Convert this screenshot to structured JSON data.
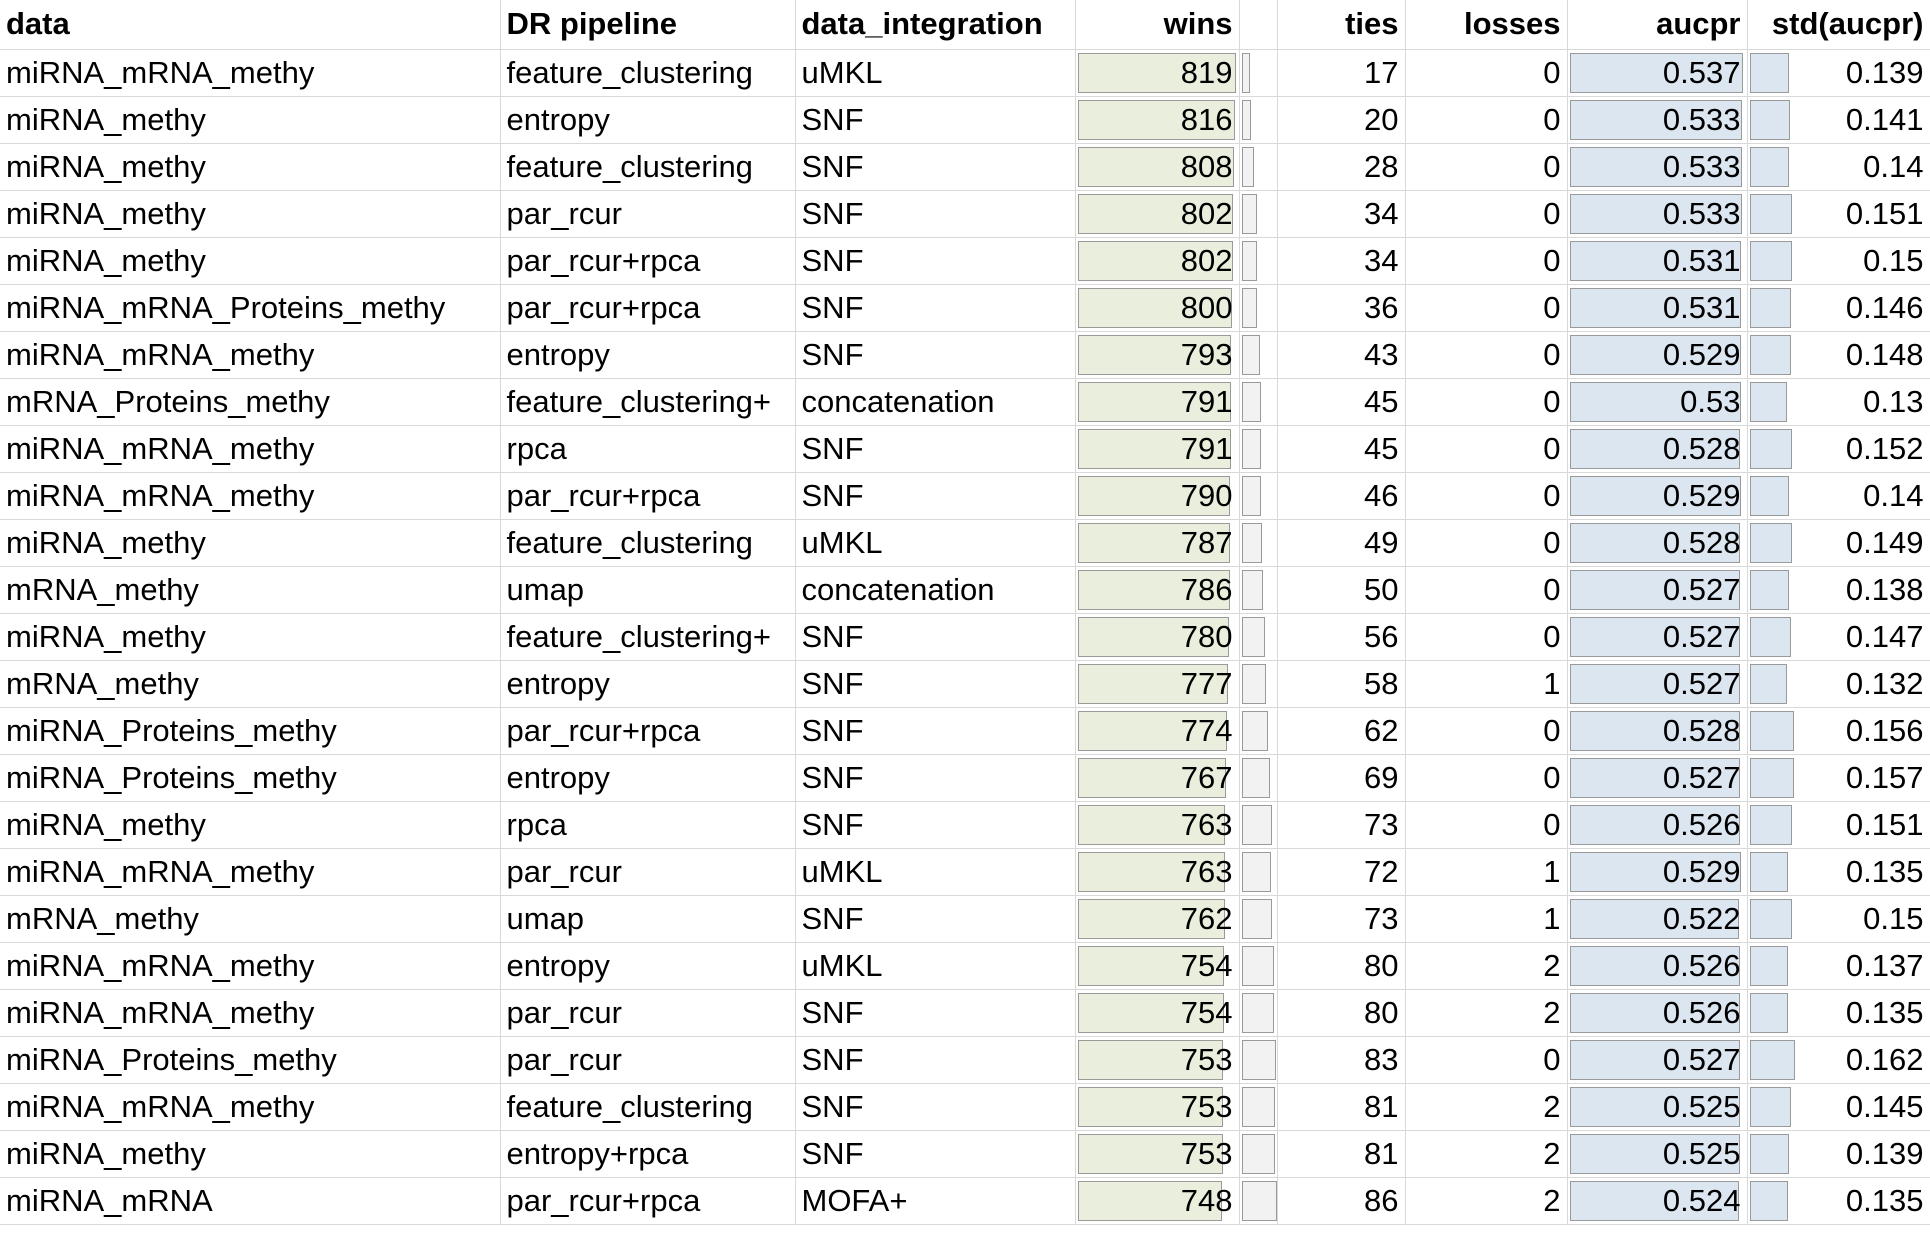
{
  "headers": {
    "data": "data",
    "dr_pipeline": "DR pipeline",
    "data_integration": "data_integration",
    "wins": "wins",
    "ties": "ties",
    "losses": "losses",
    "aucpr": "aucpr",
    "std_aucpr": "std(aucpr)"
  },
  "colors": {
    "wins_bar": "#e9efdc",
    "aucpr_bar": "#dce6f1",
    "std_bar": "#f2f2f2",
    "gridline": "#d9d9d9"
  },
  "rows": [
    {
      "data": "miRNA_mRNA_methy",
      "dr": "feature_clustering",
      "integration": "uMKL",
      "wins": "819",
      "ties": "17",
      "losses": "0",
      "aucpr": "0.537",
      "std": "0.139"
    },
    {
      "data": "miRNA_methy",
      "dr": "entropy",
      "integration": "SNF",
      "wins": "816",
      "ties": "20",
      "losses": "0",
      "aucpr": "0.533",
      "std": "0.141"
    },
    {
      "data": "miRNA_methy",
      "dr": "feature_clustering",
      "integration": "SNF",
      "wins": "808",
      "ties": "28",
      "losses": "0",
      "aucpr": "0.533",
      "std": "0.14"
    },
    {
      "data": "miRNA_methy",
      "dr": "par_rcur",
      "integration": "SNF",
      "wins": "802",
      "ties": "34",
      "losses": "0",
      "aucpr": "0.533",
      "std": "0.151"
    },
    {
      "data": "miRNA_methy",
      "dr": "par_rcur+rpca",
      "integration": "SNF",
      "wins": "802",
      "ties": "34",
      "losses": "0",
      "aucpr": "0.531",
      "std": "0.15"
    },
    {
      "data": "miRNA_mRNA_Proteins_methy",
      "dr": "par_rcur+rpca",
      "integration": "SNF",
      "wins": "800",
      "ties": "36",
      "losses": "0",
      "aucpr": "0.531",
      "std": "0.146"
    },
    {
      "data": "miRNA_mRNA_methy",
      "dr": "entropy",
      "integration": "SNF",
      "wins": "793",
      "ties": "43",
      "losses": "0",
      "aucpr": "0.529",
      "std": "0.148"
    },
    {
      "data": "mRNA_Proteins_methy",
      "dr": "feature_clustering+",
      "integration": "concatenation",
      "wins": "791",
      "ties": "45",
      "losses": "0",
      "aucpr": "0.53",
      "std": "0.13"
    },
    {
      "data": "miRNA_mRNA_methy",
      "dr": "rpca",
      "integration": "SNF",
      "wins": "791",
      "ties": "45",
      "losses": "0",
      "aucpr": "0.528",
      "std": "0.152"
    },
    {
      "data": "miRNA_mRNA_methy",
      "dr": "par_rcur+rpca",
      "integration": "SNF",
      "wins": "790",
      "ties": "46",
      "losses": "0",
      "aucpr": "0.529",
      "std": "0.14"
    },
    {
      "data": "miRNA_methy",
      "dr": "feature_clustering",
      "integration": "uMKL",
      "wins": "787",
      "ties": "49",
      "losses": "0",
      "aucpr": "0.528",
      "std": "0.149"
    },
    {
      "data": "mRNA_methy",
      "dr": "umap",
      "integration": "concatenation",
      "wins": "786",
      "ties": "50",
      "losses": "0",
      "aucpr": "0.527",
      "std": "0.138"
    },
    {
      "data": "miRNA_methy",
      "dr": "feature_clustering+",
      "integration": "SNF",
      "wins": "780",
      "ties": "56",
      "losses": "0",
      "aucpr": "0.527",
      "std": "0.147"
    },
    {
      "data": "mRNA_methy",
      "dr": "entropy",
      "integration": "SNF",
      "wins": "777",
      "ties": "58",
      "losses": "1",
      "aucpr": "0.527",
      "std": "0.132"
    },
    {
      "data": "miRNA_Proteins_methy",
      "dr": "par_rcur+rpca",
      "integration": "SNF",
      "wins": "774",
      "ties": "62",
      "losses": "0",
      "aucpr": "0.528",
      "std": "0.156"
    },
    {
      "data": "miRNA_Proteins_methy",
      "dr": "entropy",
      "integration": "SNF",
      "wins": "767",
      "ties": "69",
      "losses": "0",
      "aucpr": "0.527",
      "std": "0.157"
    },
    {
      "data": "miRNA_methy",
      "dr": "rpca",
      "integration": "SNF",
      "wins": "763",
      "ties": "73",
      "losses": "0",
      "aucpr": "0.526",
      "std": "0.151"
    },
    {
      "data": "miRNA_mRNA_methy",
      "dr": "par_rcur",
      "integration": "uMKL",
      "wins": "763",
      "ties": "72",
      "losses": "1",
      "aucpr": "0.529",
      "std": "0.135"
    },
    {
      "data": "mRNA_methy",
      "dr": "umap",
      "integration": "SNF",
      "wins": "762",
      "ties": "73",
      "losses": "1",
      "aucpr": "0.522",
      "std": "0.15"
    },
    {
      "data": "miRNA_mRNA_methy",
      "dr": "entropy",
      "integration": "uMKL",
      "wins": "754",
      "ties": "80",
      "losses": "2",
      "aucpr": "0.526",
      "std": "0.137"
    },
    {
      "data": "miRNA_mRNA_methy",
      "dr": "par_rcur",
      "integration": "SNF",
      "wins": "754",
      "ties": "80",
      "losses": "2",
      "aucpr": "0.526",
      "std": "0.135"
    },
    {
      "data": "miRNA_Proteins_methy",
      "dr": "par_rcur",
      "integration": "SNF",
      "wins": "753",
      "ties": "83",
      "losses": "0",
      "aucpr": "0.527",
      "std": "0.162"
    },
    {
      "data": "miRNA_mRNA_methy",
      "dr": "feature_clustering",
      "integration": "SNF",
      "wins": "753",
      "ties": "81",
      "losses": "2",
      "aucpr": "0.525",
      "std": "0.145"
    },
    {
      "data": "miRNA_methy",
      "dr": "entropy+rpca",
      "integration": "SNF",
      "wins": "753",
      "ties": "81",
      "losses": "2",
      "aucpr": "0.525",
      "std": "0.139"
    },
    {
      "data": "miRNA_mRNA",
      "dr": "par_rcur+rpca",
      "integration": "MOFA+",
      "wins": "748",
      "ties": "86",
      "losses": "2",
      "aucpr": "0.524",
      "std": "0.135"
    }
  ]
}
